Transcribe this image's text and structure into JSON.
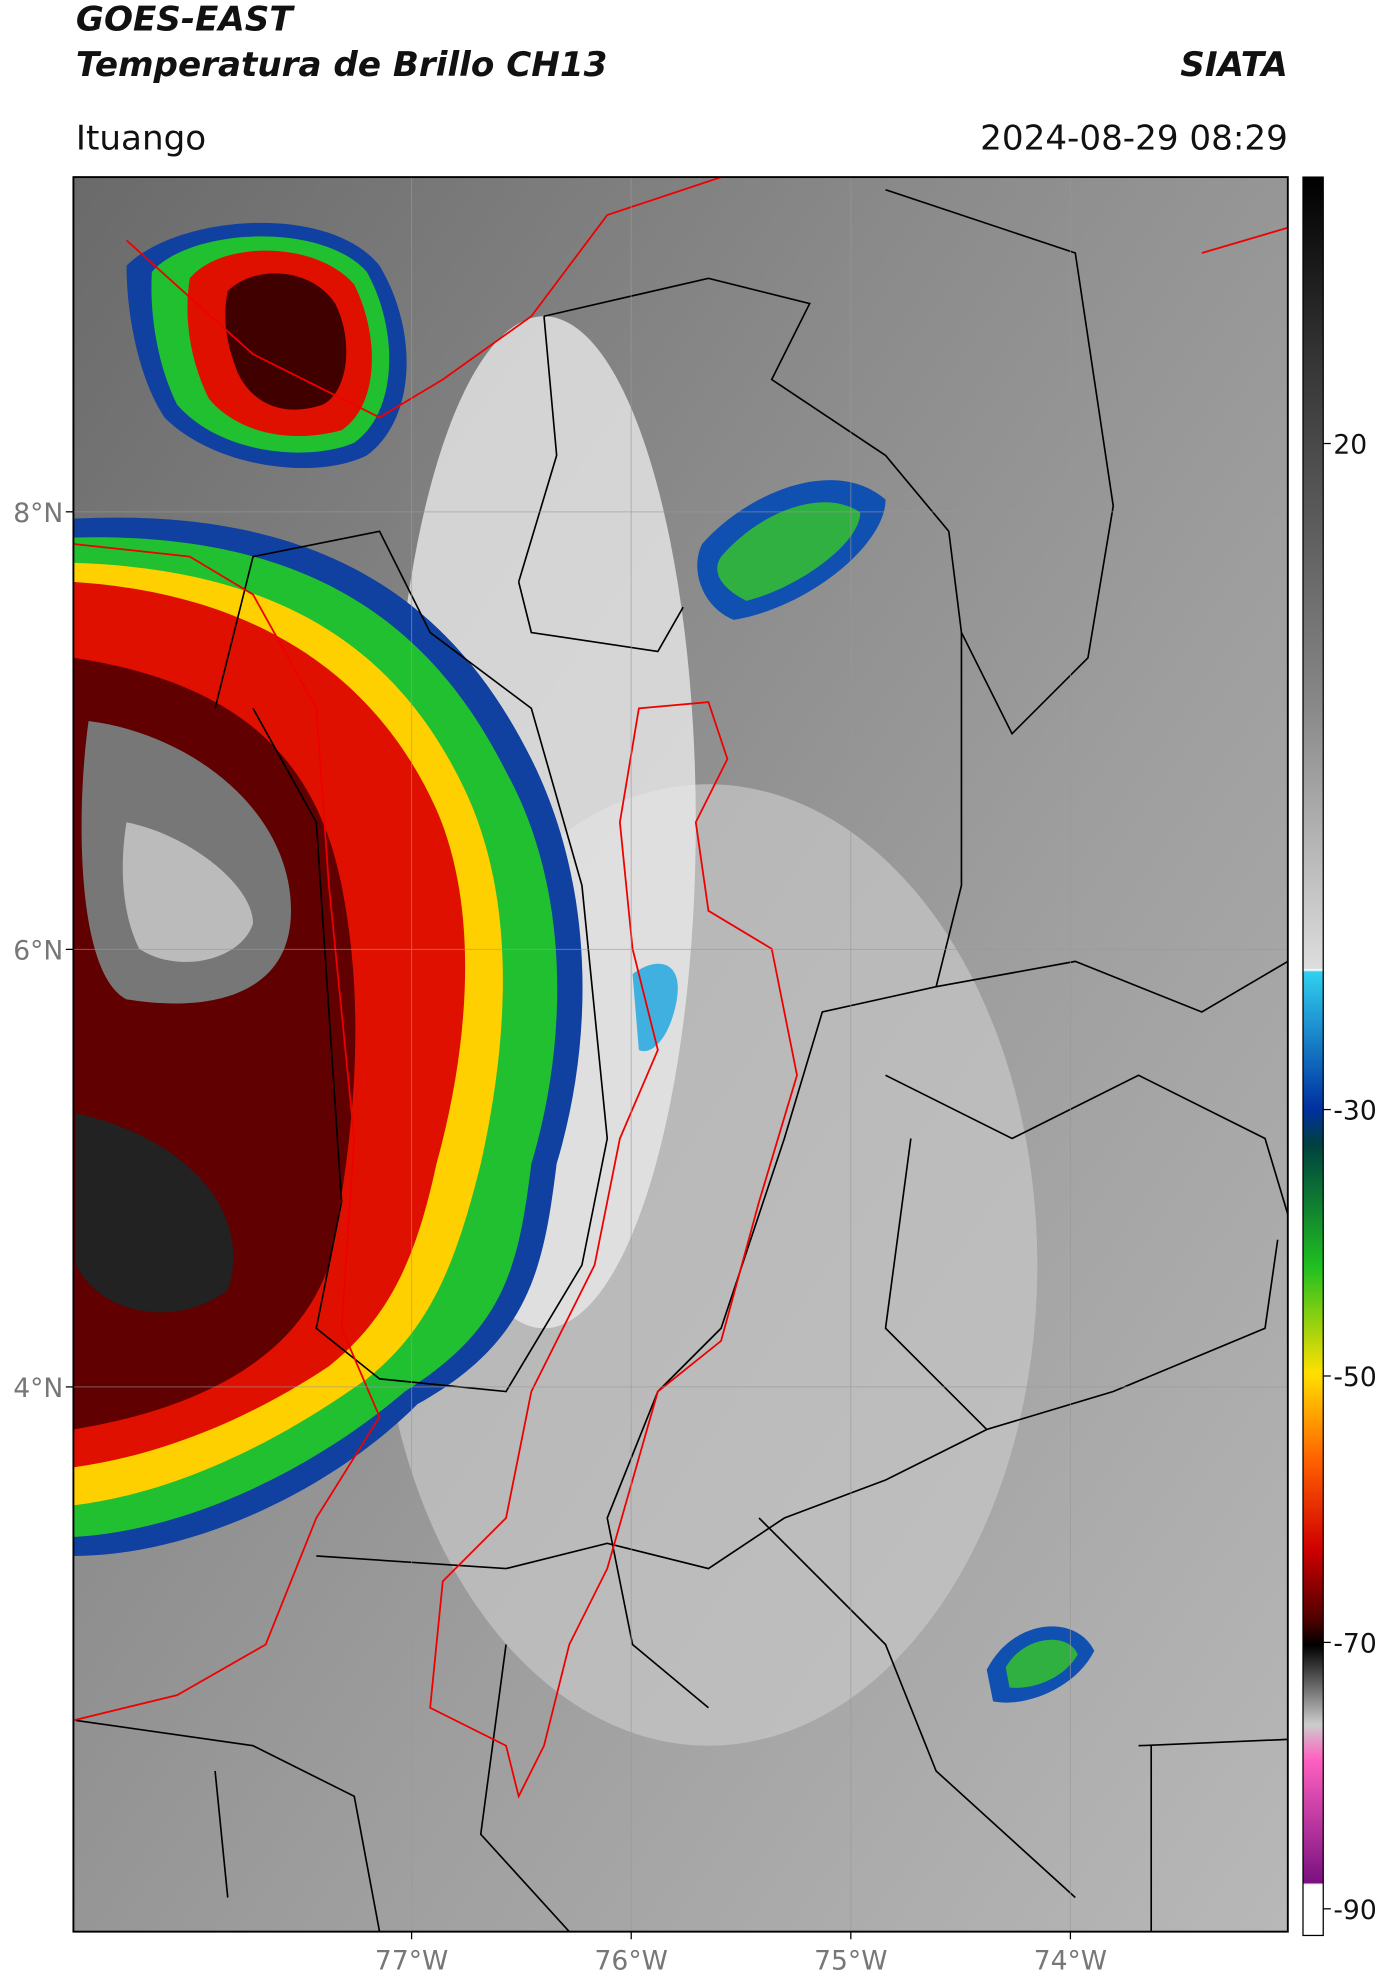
{
  "header": {
    "title_line1": "GOES-EAST",
    "title_line2": "Temperatura de Brillo CH13",
    "brand": "SIATA",
    "location": "Ituango",
    "datetime": "2024-08-29 08:29"
  },
  "map": {
    "xlim": [
      -78.54,
      -73.01
    ],
    "ylim": [
      1.51,
      9.53
    ],
    "xticks": [
      {
        "value": -77,
        "label": "77°W"
      },
      {
        "value": -76,
        "label": "76°W"
      },
      {
        "value": -75,
        "label": "75°W"
      },
      {
        "value": -74,
        "label": "74°W"
      }
    ],
    "yticks": [
      {
        "value": 8,
        "label": "8°N"
      },
      {
        "value": 6,
        "label": "6°N"
      },
      {
        "value": 4,
        "label": "4°N"
      }
    ],
    "grid": true
  },
  "colorbar": {
    "clim": [
      -92,
      40
    ],
    "ticks": [
      20,
      -30,
      -50,
      -70,
      -90
    ]
  }
}
